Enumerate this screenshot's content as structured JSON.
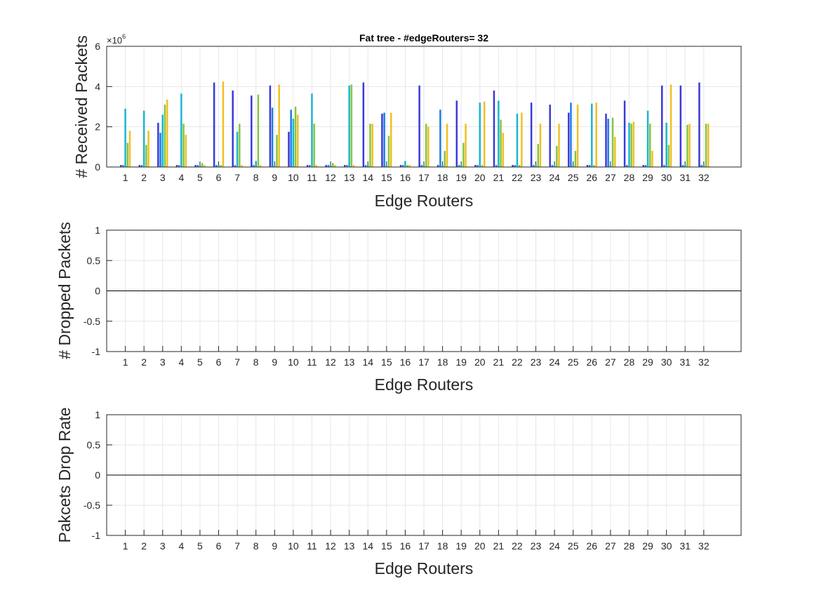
{
  "chart_data": [
    {
      "type": "bar",
      "title": "Fat tree - #edgeRouters= 32",
      "xlabel": "Edge Routers",
      "ylabel": "# Received Packets",
      "y_exponent_base": "×10",
      "y_exponent_power": "6",
      "categories": [
        "1",
        "2",
        "3",
        "4",
        "5",
        "6",
        "7",
        "8",
        "9",
        "10",
        "11",
        "12",
        "13",
        "14",
        "15",
        "16",
        "17",
        "18",
        "19",
        "20",
        "21",
        "22",
        "23",
        "24",
        "25",
        "26",
        "27",
        "28",
        "29",
        "30",
        "31",
        "32"
      ],
      "xlim": [
        0,
        34
      ],
      "ylim": [
        0,
        6
      ],
      "yticks": [
        0,
        2,
        4,
        6
      ],
      "ytick_labels": [
        "0",
        "2",
        "4",
        "6"
      ],
      "grid": true,
      "bar_groups": [
        [
          0.1,
          0.1,
          2.9,
          1.2,
          1.8
        ],
        [
          0.1,
          0.1,
          2.8,
          1.1,
          1.8
        ],
        [
          2.2,
          1.7,
          2.6,
          3.1,
          3.35
        ],
        [
          0.1,
          0.1,
          3.65,
          2.15,
          1.6
        ],
        [
          0.1,
          0.1,
          0.1,
          0.2,
          0.1
        ],
        [
          4.2,
          0.1,
          0.1,
          0.1,
          4.25
        ],
        [
          3.8,
          0.1,
          1.75,
          2.15,
          0.1
        ],
        [
          3.55,
          0.1,
          0.3,
          3.6,
          0.1
        ],
        [
          4.05,
          2.95,
          0.1,
          1.6,
          4.1
        ],
        [
          1.75,
          2.85,
          2.4,
          3.0,
          2.6
        ],
        [
          0.1,
          0.1,
          3.65,
          2.15,
          0.1
        ],
        [
          0.1,
          0.1,
          0.1,
          0.2,
          0.1
        ],
        [
          0.1,
          0.1,
          4.05,
          4.1,
          0.1
        ],
        [
          4.2,
          0.1,
          0.1,
          2.15,
          2.15
        ],
        [
          2.65,
          2.7,
          0.1,
          1.55,
          2.7
        ],
        [
          0.1,
          0.1,
          0.3,
          0.1,
          0.1
        ],
        [
          4.05,
          0.1,
          0.1,
          2.15,
          2.0
        ],
        [
          0.1,
          2.85,
          0.1,
          0.8,
          2.15
        ],
        [
          3.3,
          0.1,
          0.1,
          1.2,
          2.15
        ],
        [
          0.1,
          0.1,
          3.2,
          0.1,
          3.25
        ],
        [
          3.8,
          0.1,
          3.3,
          2.35,
          1.7
        ],
        [
          0.1,
          0.1,
          2.65,
          0.1,
          2.7
        ],
        [
          3.2,
          0.1,
          0.1,
          1.15,
          2.15
        ],
        [
          3.1,
          0.1,
          0.1,
          1.05,
          2.15
        ],
        [
          2.7,
          3.2,
          0.1,
          0.8,
          3.1
        ],
        [
          0.1,
          0.1,
          3.15,
          0.1,
          3.2
        ],
        [
          2.65,
          2.4,
          0.1,
          2.45,
          1.5
        ],
        [
          3.3,
          0.1,
          2.2,
          2.15,
          2.25
        ],
        [
          0.1,
          0.1,
          2.8,
          2.15,
          0.8
        ],
        [
          4.05,
          0.1,
          2.2,
          1.1,
          4.1
        ],
        [
          4.05,
          0.1,
          0.1,
          2.1,
          2.15
        ],
        [
          4.2,
          0.1,
          0.1,
          2.15,
          2.15
        ]
      ],
      "series_colors": [
        "#3a3ad8",
        "#1f7de0",
        "#1bb5cf",
        "#86c440",
        "#f0c020"
      ]
    },
    {
      "type": "bar",
      "title": "",
      "xlabel": "Edge Routers",
      "ylabel": "# Dropped Packets",
      "categories": [
        "1",
        "2",
        "3",
        "4",
        "5",
        "6",
        "7",
        "8",
        "9",
        "10",
        "11",
        "12",
        "13",
        "14",
        "15",
        "16",
        "17",
        "18",
        "19",
        "20",
        "21",
        "22",
        "23",
        "24",
        "25",
        "26",
        "27",
        "28",
        "29",
        "30",
        "31",
        "32"
      ],
      "xlim": [
        0,
        34
      ],
      "ylim": [
        -1,
        1
      ],
      "yticks": [
        -1,
        -0.5,
        0,
        0.5,
        1
      ],
      "ytick_labels": [
        "-1",
        "-0.5",
        "0",
        "0.5",
        "1"
      ],
      "grid": true,
      "values": [
        0,
        0,
        0,
        0,
        0,
        0,
        0,
        0,
        0,
        0,
        0,
        0,
        0,
        0,
        0,
        0,
        0,
        0,
        0,
        0,
        0,
        0,
        0,
        0,
        0,
        0,
        0,
        0,
        0,
        0,
        0,
        0
      ]
    },
    {
      "type": "bar",
      "title": "",
      "xlabel": "Edge Routers",
      "ylabel": "Pakcets Drop Rate",
      "categories": [
        "1",
        "2",
        "3",
        "4",
        "5",
        "6",
        "7",
        "8",
        "9",
        "10",
        "11",
        "12",
        "13",
        "14",
        "15",
        "16",
        "17",
        "18",
        "19",
        "20",
        "21",
        "22",
        "23",
        "24",
        "25",
        "26",
        "27",
        "28",
        "29",
        "30",
        "31",
        "32"
      ],
      "xlim": [
        0,
        34
      ],
      "ylim": [
        -1,
        1
      ],
      "yticks": [
        -1,
        -0.5,
        0,
        0.5,
        1
      ],
      "ytick_labels": [
        "-1",
        "-0.5",
        "0",
        "0.5",
        "1"
      ],
      "grid": true,
      "values": [
        0,
        0,
        0,
        0,
        0,
        0,
        0,
        0,
        0,
        0,
        0,
        0,
        0,
        0,
        0,
        0,
        0,
        0,
        0,
        0,
        0,
        0,
        0,
        0,
        0,
        0,
        0,
        0,
        0,
        0,
        0,
        0
      ]
    }
  ]
}
